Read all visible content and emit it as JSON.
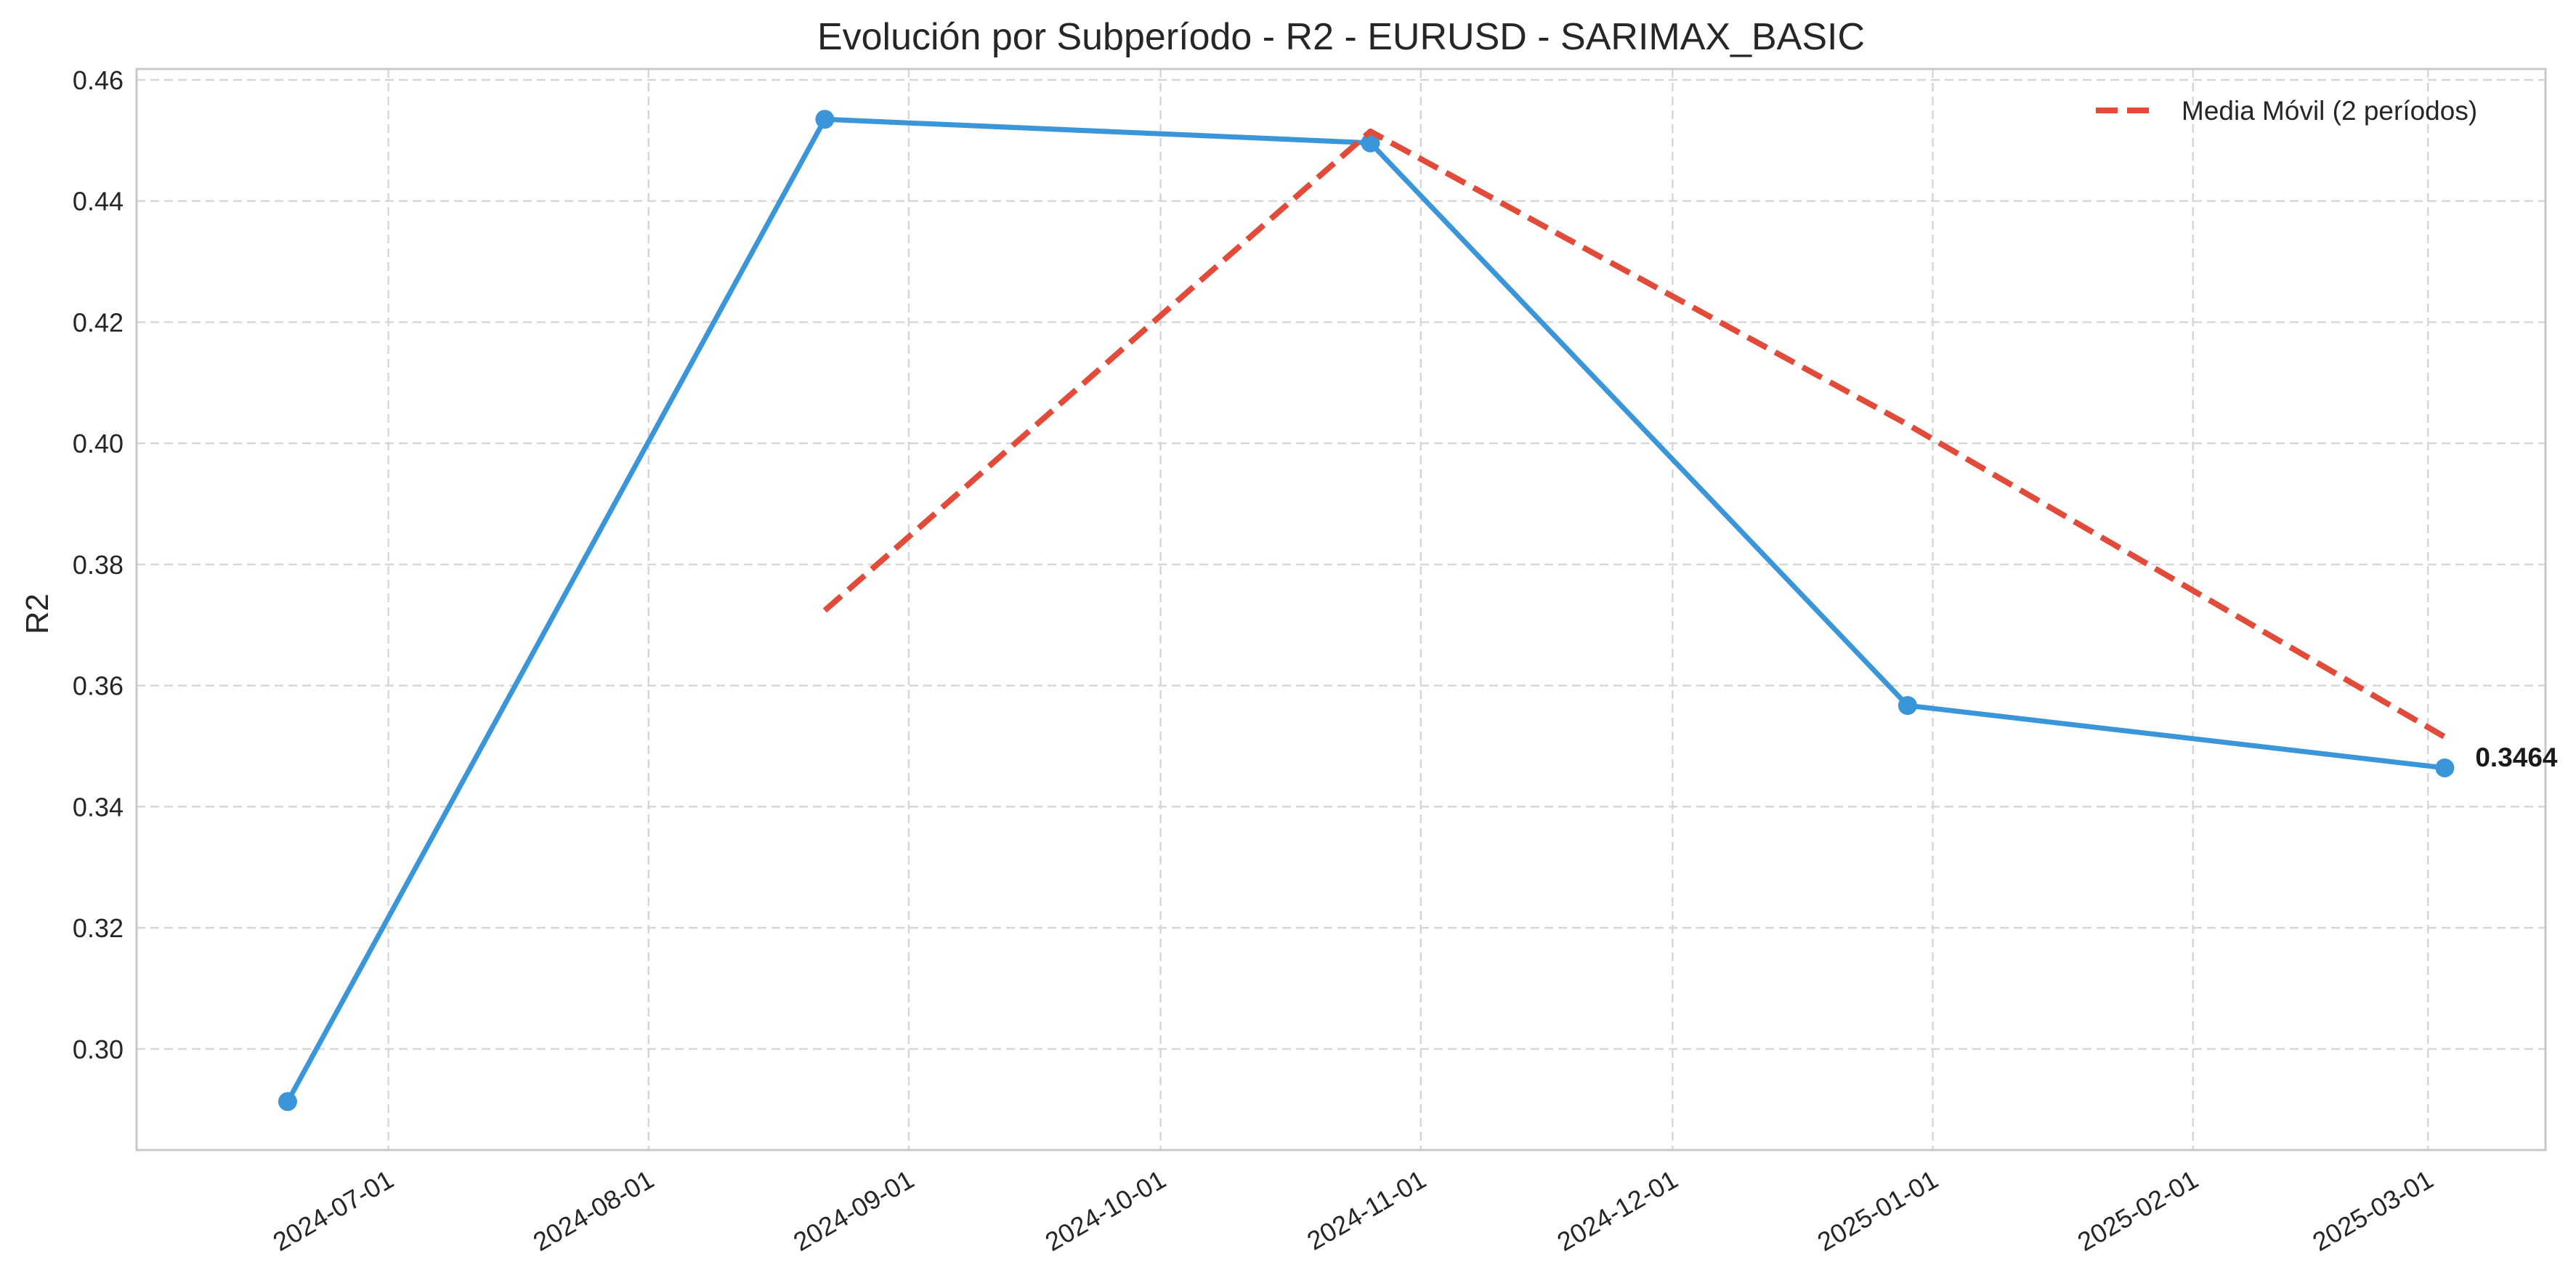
{
  "chart_data": {
    "type": "line",
    "title": "Evolución por Subperíodo - R2 - EURUSD - SARIMAX_BASIC",
    "xlabel": "",
    "ylabel": "R2",
    "x_ticks": [
      "2024-07-01",
      "2024-08-01",
      "2024-09-01",
      "2024-10-01",
      "2024-11-01",
      "2024-12-01",
      "2025-01-01",
      "2025-02-01",
      "2025-03-01"
    ],
    "y_ticks": [
      "0.30",
      "0.32",
      "0.34",
      "0.36",
      "0.38",
      "0.40",
      "0.42",
      "0.44",
      "0.46"
    ],
    "xlim": [
      "2024-06-01",
      "2025-03-15"
    ],
    "ylim": [
      0.2833,
      0.4618
    ],
    "grid": true,
    "legend": "top-right",
    "series": [
      {
        "values": [
          {
            "x": "2024-06-19",
            "y": 0.2913
          },
          {
            "x": "2024-08-22",
            "y": 0.4535
          },
          {
            "x": "2024-10-26",
            "y": 0.4496
          },
          {
            "x": "2024-12-29",
            "y": 0.3567
          },
          {
            "x": "2025-03-03",
            "y": 0.3464
          }
        ],
        "color": "#3a96d8",
        "style": "solid",
        "markers": true
      },
      {
        "name": "Media Móvil (2 períodos)",
        "values": [
          {
            "x": "2024-08-22",
            "y": 0.3724
          },
          {
            "x": "2024-10-26",
            "y": 0.4515
          },
          {
            "x": "2024-12-29",
            "y": 0.4031
          },
          {
            "x": "2025-03-03",
            "y": 0.3515
          }
        ],
        "color": "#e24a3a",
        "style": "dashed",
        "markers": false
      }
    ],
    "annotations": [
      {
        "x": "2025-03-03",
        "y": 0.3464,
        "text": "0.3464"
      }
    ]
  }
}
